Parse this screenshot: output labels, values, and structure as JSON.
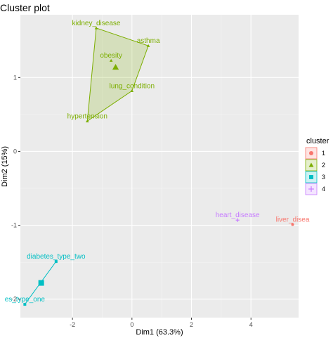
{
  "chart_data": {
    "type": "scatter",
    "title": "Cluster plot",
    "xlabel": "Dim1 (63.3%)",
    "ylabel": "Dim2 (15%)",
    "xlim": [
      -3.75,
      5.6
    ],
    "ylim": [
      -2.25,
      1.85
    ],
    "xticks": [
      -2,
      0,
      2,
      4
    ],
    "yticks": [
      -2,
      -1,
      0,
      1
    ],
    "grid": true,
    "legend": {
      "title": "cluster",
      "position": "right",
      "entries": [
        "1",
        "2",
        "3",
        "4"
      ]
    },
    "colors": {
      "1": "#F8766D",
      "2": "#7CAE00",
      "3": "#00BFC4",
      "4": "#C77CFF"
    },
    "series": [
      {
        "cluster": "1",
        "points": [
          {
            "label": "liver_disea",
            "x": 5.4,
            "y": -0.99
          }
        ],
        "center": null
      },
      {
        "cluster": "2",
        "points": [
          {
            "label": "kidney_disease",
            "x": -1.2,
            "y": 1.67
          },
          {
            "label": "asthma",
            "x": 0.55,
            "y": 1.43
          },
          {
            "label": "obesity",
            "x": -0.7,
            "y": 1.23
          },
          {
            "label": "lung_condition",
            "x": 0.0,
            "y": 0.82
          },
          {
            "label": "hypertension",
            "x": -1.5,
            "y": 0.41
          }
        ],
        "center": {
          "x": -0.55,
          "y": 1.14
        }
      },
      {
        "cluster": "3",
        "points": [
          {
            "label": "diabetes_type_two",
            "x": -2.55,
            "y": -1.49
          },
          {
            "label": "es_type_one",
            "x": -3.6,
            "y": -2.07
          }
        ],
        "center": {
          "x": -3.05,
          "y": -1.78
        }
      },
      {
        "cluster": "4",
        "points": [
          {
            "label": "heart_disease",
            "x": 3.55,
            "y": -0.93
          }
        ],
        "center": null
      }
    ]
  }
}
